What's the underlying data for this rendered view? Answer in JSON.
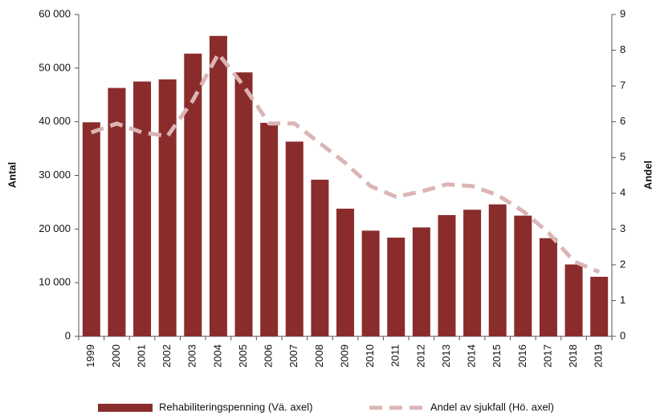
{
  "chart_data": {
    "type": "bar",
    "categories": [
      "1999",
      "2000",
      "2001",
      "2002",
      "2003",
      "2004",
      "2005",
      "2006",
      "2007",
      "2008",
      "2009",
      "2010",
      "2011",
      "2012",
      "2013",
      "2014",
      "2015",
      "2016",
      "2017",
      "2018",
      "2019"
    ],
    "series": [
      {
        "name": "Rehabiliteringspenning (Vä. axel)",
        "color": "#8b2c2c",
        "type": "bar",
        "values": [
          39900,
          46300,
          47500,
          47900,
          52700,
          56000,
          49200,
          39800,
          36300,
          29200,
          23800,
          19700,
          18400,
          20300,
          22600,
          23600,
          24600,
          22500,
          18300,
          13400,
          11100
        ]
      },
      {
        "name": "Andel av sjukfall (Hö. axel)",
        "color": "#dbb5b5",
        "type": "line",
        "axis": "y2",
        "dashed": true,
        "values": [
          5.7,
          5.95,
          5.7,
          5.6,
          6.6,
          7.9,
          7.0,
          5.95,
          5.95,
          5.4,
          4.85,
          4.2,
          3.9,
          4.05,
          4.25,
          4.2,
          3.95,
          3.5,
          2.9,
          2.1,
          1.8
        ]
      }
    ],
    "ylabel": "Antal",
    "y2label": "Andel",
    "ylim": [
      0,
      60000
    ],
    "yticks": [
      0,
      {
        "value": 10000,
        "label": "10 000"
      },
      {
        "value": 20000,
        "label": "20 000"
      },
      {
        "value": 30000,
        "label": "30 000"
      },
      {
        "value": 40000,
        "label": "40 000"
      },
      {
        "value": 50000,
        "label": "50 000"
      },
      {
        "value": 60000,
        "label": "60 000"
      }
    ],
    "y2lim": [
      0,
      9
    ],
    "y2ticks": [
      0,
      1,
      2,
      3,
      4,
      5,
      6,
      7,
      8,
      9
    ],
    "legend": "bottom"
  }
}
